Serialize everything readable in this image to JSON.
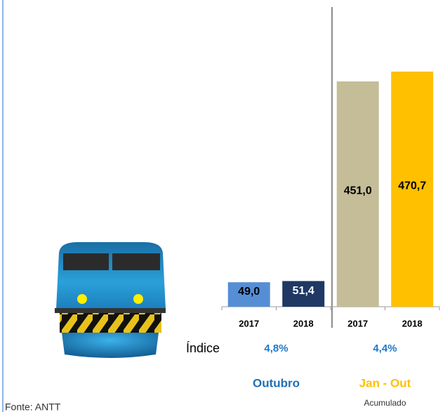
{
  "chart_data": {
    "type": "bar",
    "categories": [
      "2017",
      "2018",
      "2017",
      "2018"
    ],
    "values": [
      49.0,
      51.4,
      451.0,
      470.7
    ],
    "value_labels": [
      "49,0",
      "51,4",
      "451,0",
      "470,7"
    ],
    "colors": [
      "#558ed5",
      "#1f3864",
      "#c4bd97",
      "#ffc000"
    ],
    "label_colors": [
      "#000000",
      "#ffffff",
      "#000000",
      "#000000"
    ],
    "groups": [
      {
        "name": "Outubro",
        "color": "#1f6fb4"
      },
      {
        "name": "Jan - Out",
        "subtitle": "Acumulado",
        "color": "#ffc000"
      }
    ],
    "index": {
      "label": "Índice",
      "values": [
        4.8,
        4.4
      ],
      "value_labels": [
        "4,8%",
        "4,4%"
      ],
      "color": "#1f78c8"
    },
    "source": "Fonte: ANTT"
  }
}
